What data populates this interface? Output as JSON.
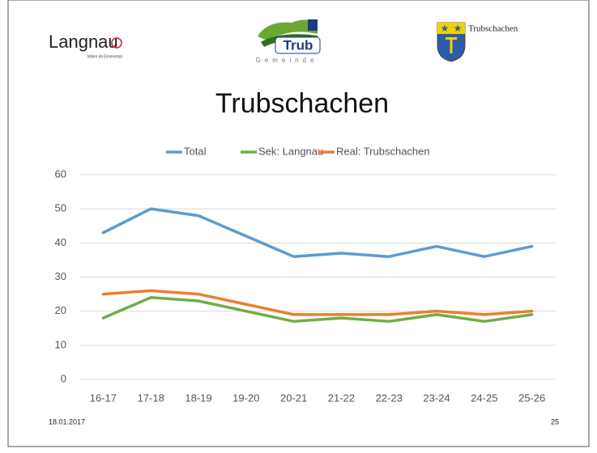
{
  "logos": {
    "langnau": "Langnau",
    "langnau_tagline": "leben im Emmental",
    "trub": "Trub",
    "trub_sub": "Gemeinde",
    "trubschachen": "Trubschachen"
  },
  "footer": {
    "date": "18.01.2017",
    "page": "25"
  },
  "chart_data": {
    "type": "line",
    "title": "Trubschachen",
    "categories": [
      "16-17",
      "17-18",
      "18-19",
      "19-20",
      "20-21",
      "21-22",
      "22-23",
      "23-24",
      "24-25",
      "25-26"
    ],
    "series": [
      {
        "name": "Total",
        "color": "#5b9bd5",
        "values": [
          43,
          50,
          48,
          42,
          36,
          37,
          36,
          39,
          36,
          39
        ]
      },
      {
        "name": "Sek: Langnau",
        "color": "#70ad47",
        "values": [
          18,
          24,
          23,
          20,
          17,
          18,
          17,
          19,
          17,
          19
        ]
      },
      {
        "name": "Real: Trubschachen",
        "color": "#ed7d31",
        "values": [
          25,
          26,
          25,
          22,
          19,
          19,
          19,
          20,
          19,
          20
        ]
      }
    ],
    "ylim": [
      0,
      60
    ],
    "yticks": [
      0,
      10,
      20,
      30,
      40,
      50,
      60
    ],
    "grid": true,
    "legend": "top"
  }
}
